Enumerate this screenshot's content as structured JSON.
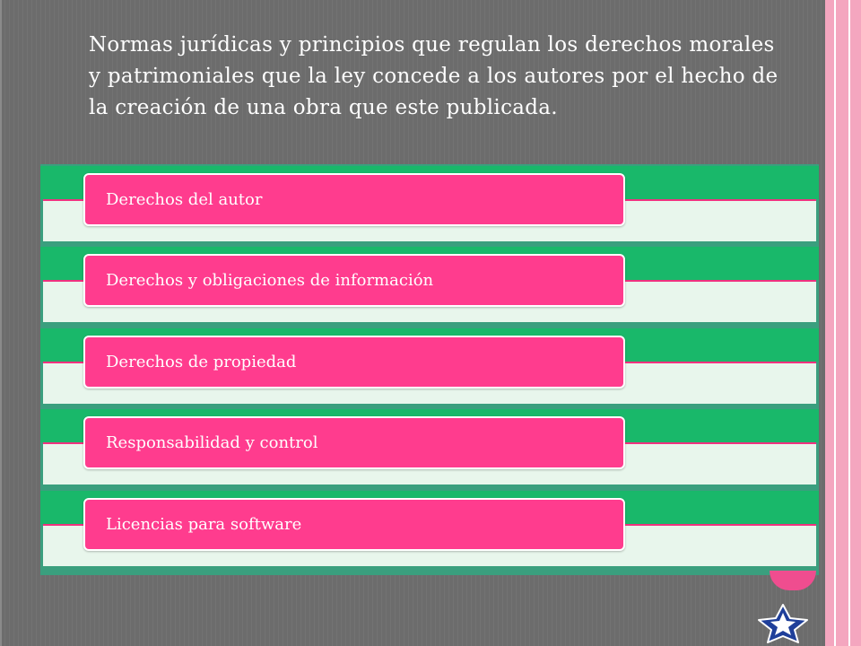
{
  "slide": {
    "title": "Normas jurídicas y principios que regulan los derechos morales y patrimoniales que la ley concede a los autores por el hecho de la creación de una obra que este publicada.",
    "items": [
      {
        "label": "Derechos del autor"
      },
      {
        "label": "Derechos y obligaciones de información"
      },
      {
        "label": "Derechos de propiedad"
      },
      {
        "label": "Responsabilidad y control"
      },
      {
        "label": "Licencias para software"
      }
    ]
  },
  "colors": {
    "background": "#6c6c6c",
    "band_green": "#19b86a",
    "row_fill": "#e8f6ec",
    "pill_pink": "#ff3c8e",
    "border_pink": "#f4a6bf",
    "star_blue": "#1f3f9a"
  },
  "icons": {
    "badge": "star-icon"
  }
}
